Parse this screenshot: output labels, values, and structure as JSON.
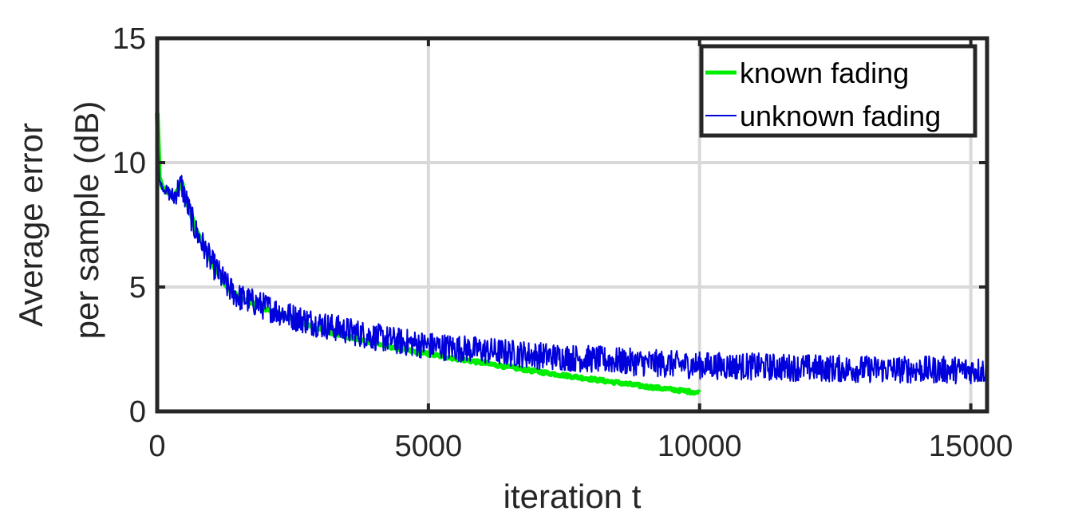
{
  "chart_data": {
    "type": "line",
    "title": "",
    "xlabel": "iteration t",
    "ylabel_lines": [
      "Average error",
      "per sample (dB)"
    ],
    "xlim": [
      0,
      15300
    ],
    "ylim": [
      0,
      15
    ],
    "xticks": [
      0,
      5000,
      10000,
      15000
    ],
    "xtick_labels": [
      "0",
      "5000",
      "10000",
      "15000"
    ],
    "yticks": [
      0,
      5,
      10,
      15
    ],
    "ytick_labels": [
      "0",
      "5",
      "10",
      "15"
    ],
    "grid": true,
    "legend_position": "top-right",
    "series": [
      {
        "name": "known fading",
        "color": "#00ee00",
        "x": [
          0,
          40,
          100,
          200,
          300,
          400,
          450,
          500,
          700,
          1000,
          1300,
          1500,
          2000,
          2500,
          3000,
          3500,
          4000,
          4500,
          5000,
          6000,
          7000,
          8000,
          9000,
          10000
        ],
        "y": [
          12.0,
          9.4,
          9.0,
          8.8,
          8.6,
          9.0,
          9.2,
          8.8,
          7.4,
          6.0,
          5.0,
          4.6,
          4.1,
          3.7,
          3.3,
          3.0,
          2.75,
          2.5,
          2.3,
          1.95,
          1.6,
          1.3,
          1.0,
          0.75
        ]
      },
      {
        "name": "unknown fading",
        "color": "#0000dd",
        "x": [
          0,
          40,
          100,
          200,
          300,
          400,
          450,
          500,
          700,
          1000,
          1300,
          1500,
          2000,
          2500,
          3000,
          3500,
          4000,
          4500,
          5000,
          6000,
          7000,
          8000,
          9000,
          10000,
          11000,
          12000,
          13000,
          14000,
          15300
        ],
        "y": [
          12.2,
          9.3,
          9.0,
          8.8,
          8.6,
          9.0,
          9.1,
          8.7,
          7.3,
          6.0,
          5.0,
          4.6,
          4.2,
          3.8,
          3.5,
          3.25,
          3.0,
          2.8,
          2.65,
          2.45,
          2.25,
          2.1,
          1.95,
          1.85,
          1.8,
          1.75,
          1.7,
          1.68,
          1.65
        ]
      }
    ]
  }
}
